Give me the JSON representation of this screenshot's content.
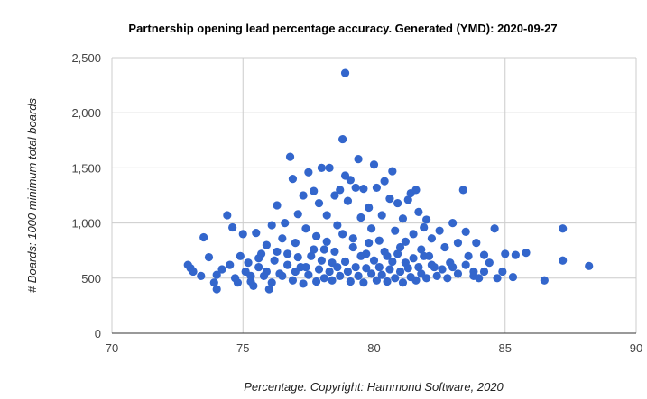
{
  "chart_data": {
    "type": "scatter",
    "title": "Partnership opening lead percentage accuracy. Generated (YMD): 2020-09-27",
    "xlabel": "Percentage. Copyright: Hammond Software, 2020",
    "ylabel": "# Boards: 1000 minimum total boards",
    "xlim": [
      70,
      90
    ],
    "ylim": [
      0,
      2500
    ],
    "x_ticks": [
      "70",
      "75",
      "80",
      "85",
      "90"
    ],
    "y_ticks": [
      "0",
      "500",
      "1,000",
      "1,500",
      "2,000",
      "2,500"
    ],
    "grid": true,
    "legend": "none",
    "point_color": "#3366cc",
    "points": [
      [
        72.9,
        620
      ],
      [
        73.0,
        590
      ],
      [
        73.1,
        560
      ],
      [
        73.4,
        520
      ],
      [
        73.5,
        870
      ],
      [
        73.7,
        690
      ],
      [
        73.9,
        460
      ],
      [
        74.0,
        400
      ],
      [
        74.0,
        530
      ],
      [
        74.2,
        580
      ],
      [
        74.4,
        1070
      ],
      [
        74.5,
        620
      ],
      [
        74.6,
        960
      ],
      [
        74.7,
        500
      ],
      [
        74.8,
        460
      ],
      [
        74.9,
        700
      ],
      [
        75.0,
        900
      ],
      [
        75.1,
        560
      ],
      [
        75.2,
        640
      ],
      [
        75.3,
        470
      ],
      [
        75.4,
        430
      ],
      [
        75.5,
        910
      ],
      [
        75.6,
        600
      ],
      [
        75.7,
        720
      ],
      [
        75.8,
        520
      ],
      [
        75.9,
        800
      ],
      [
        76.0,
        400
      ],
      [
        76.1,
        980
      ],
      [
        76.2,
        660
      ],
      [
        76.3,
        1160
      ],
      [
        76.4,
        540
      ],
      [
        76.5,
        860
      ],
      [
        76.6,
        1000
      ],
      [
        76.7,
        720
      ],
      [
        76.8,
        1600
      ],
      [
        76.9,
        1400
      ],
      [
        77.0,
        820
      ],
      [
        77.1,
        1080
      ],
      [
        77.2,
        600
      ],
      [
        77.3,
        1250
      ],
      [
        77.4,
        950
      ],
      [
        77.5,
        1460
      ],
      [
        77.6,
        700
      ],
      [
        77.7,
        1290
      ],
      [
        77.8,
        880
      ],
      [
        77.9,
        1180
      ],
      [
        78.0,
        1500
      ],
      [
        78.1,
        760
      ],
      [
        78.2,
        1070
      ],
      [
        78.3,
        1500
      ],
      [
        78.4,
        640
      ],
      [
        78.5,
        1250
      ],
      [
        78.6,
        980
      ],
      [
        78.7,
        1300
      ],
      [
        78.8,
        1760
      ],
      [
        78.9,
        2360
      ],
      [
        78.9,
        1430
      ],
      [
        79.0,
        1200
      ],
      [
        79.1,
        1390
      ],
      [
        79.2,
        860
      ],
      [
        79.3,
        1320
      ],
      [
        79.4,
        1580
      ],
      [
        79.5,
        1050
      ],
      [
        79.6,
        1310
      ],
      [
        79.7,
        720
      ],
      [
        79.8,
        1140
      ],
      [
        79.9,
        950
      ],
      [
        80.0,
        1530
      ],
      [
        80.1,
        1320
      ],
      [
        80.2,
        840
      ],
      [
        80.3,
        1070
      ],
      [
        80.4,
        1380
      ],
      [
        80.5,
        700
      ],
      [
        80.6,
        1220
      ],
      [
        80.7,
        1470
      ],
      [
        80.8,
        930
      ],
      [
        80.9,
        1180
      ],
      [
        81.0,
        780
      ],
      [
        81.1,
        1040
      ],
      [
        81.2,
        640
      ],
      [
        81.3,
        1210
      ],
      [
        81.4,
        1270
      ],
      [
        81.5,
        900
      ],
      [
        81.6,
        1300
      ],
      [
        81.7,
        1100
      ],
      [
        81.8,
        760
      ],
      [
        81.9,
        960
      ],
      [
        82.0,
        1030
      ],
      [
        82.1,
        700
      ],
      [
        82.2,
        860
      ],
      [
        82.3,
        600
      ],
      [
        82.5,
        930
      ],
      [
        82.7,
        780
      ],
      [
        82.9,
        640
      ],
      [
        83.0,
        1000
      ],
      [
        83.2,
        820
      ],
      [
        83.4,
        1300
      ],
      [
        83.5,
        920
      ],
      [
        83.6,
        700
      ],
      [
        83.8,
        560
      ],
      [
        83.9,
        820
      ],
      [
        84.0,
        500
      ],
      [
        84.2,
        710
      ],
      [
        84.4,
        640
      ],
      [
        84.6,
        950
      ],
      [
        84.7,
        500
      ],
      [
        84.9,
        560
      ],
      [
        85.0,
        720
      ],
      [
        85.3,
        510
      ],
      [
        85.4,
        710
      ],
      [
        85.8,
        730
      ],
      [
        86.5,
        480
      ],
      [
        87.2,
        950
      ],
      [
        87.2,
        660
      ],
      [
        88.2,
        610
      ],
      [
        75.3,
        520
      ],
      [
        75.6,
        680
      ],
      [
        75.9,
        560
      ],
      [
        76.1,
        460
      ],
      [
        76.3,
        740
      ],
      [
        76.5,
        520
      ],
      [
        76.7,
        620
      ],
      [
        76.9,
        480
      ],
      [
        77.0,
        560
      ],
      [
        77.1,
        690
      ],
      [
        77.3,
        450
      ],
      [
        77.4,
        600
      ],
      [
        77.5,
        530
      ],
      [
        77.7,
        760
      ],
      [
        77.8,
        470
      ],
      [
        77.9,
        580
      ],
      [
        78.0,
        660
      ],
      [
        78.1,
        500
      ],
      [
        78.2,
        830
      ],
      [
        78.3,
        560
      ],
      [
        78.4,
        480
      ],
      [
        78.5,
        740
      ],
      [
        78.6,
        600
      ],
      [
        78.7,
        520
      ],
      [
        78.8,
        900
      ],
      [
        78.9,
        650
      ],
      [
        79.0,
        560
      ],
      [
        79.1,
        470
      ],
      [
        79.2,
        780
      ],
      [
        79.3,
        600
      ],
      [
        79.4,
        520
      ],
      [
        79.5,
        700
      ],
      [
        79.6,
        460
      ],
      [
        79.7,
        590
      ],
      [
        79.8,
        820
      ],
      [
        79.9,
        540
      ],
      [
        80.0,
        660
      ],
      [
        80.1,
        480
      ],
      [
        80.2,
        600
      ],
      [
        80.3,
        530
      ],
      [
        80.4,
        740
      ],
      [
        80.5,
        470
      ],
      [
        80.6,
        580
      ],
      [
        80.7,
        650
      ],
      [
        80.8,
        500
      ],
      [
        80.9,
        720
      ],
      [
        81.0,
        560
      ],
      [
        81.1,
        460
      ],
      [
        81.2,
        830
      ],
      [
        81.3,
        590
      ],
      [
        81.4,
        510
      ],
      [
        81.5,
        680
      ],
      [
        81.6,
        480
      ],
      [
        81.7,
        600
      ],
      [
        81.8,
        540
      ],
      [
        81.9,
        700
      ],
      [
        82.0,
        500
      ],
      [
        82.2,
        620
      ],
      [
        82.4,
        520
      ],
      [
        82.6,
        580
      ],
      [
        82.8,
        500
      ],
      [
        83.0,
        600
      ],
      [
        83.2,
        540
      ],
      [
        83.5,
        620
      ],
      [
        83.8,
        520
      ],
      [
        84.2,
        560
      ]
    ]
  }
}
